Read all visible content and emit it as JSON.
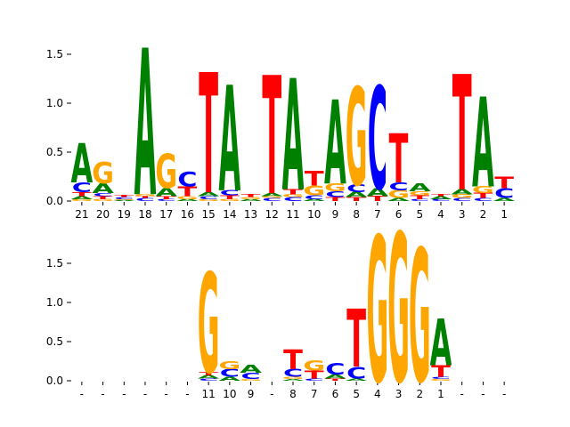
{
  "colors": {
    "A": "#008000",
    "C": "#0000ff",
    "G": "#ffa500",
    "T": "#ff0000"
  },
  "chart_data": [
    {
      "type": "sequence-logo",
      "title": "",
      "xlabel": "",
      "ylabel": "",
      "ylim": [
        0,
        1.6
      ],
      "yticks": [
        0.0,
        0.5,
        1.0,
        1.5
      ],
      "grid": false,
      "positions": [
        {
          "label": "21",
          "stack": [
            [
              "G",
              0.02
            ],
            [
              "A",
              0.03
            ],
            [
              "T",
              0.04
            ],
            [
              "C",
              0.1
            ],
            [
              "A",
              0.4
            ]
          ]
        },
        {
          "label": "20",
          "stack": [
            [
              "G",
              0.02
            ],
            [
              "T",
              0.03
            ],
            [
              "C",
              0.03
            ],
            [
              "A",
              0.1
            ],
            [
              "G",
              0.22
            ]
          ]
        },
        {
          "label": "19",
          "stack": [
            [
              "A",
              0.01
            ],
            [
              "G",
              0.01
            ],
            [
              "C",
              0.02
            ],
            [
              "T",
              0.02
            ]
          ]
        },
        {
          "label": "18",
          "stack": [
            [
              "C",
              0.03
            ],
            [
              "T",
              0.02
            ],
            [
              "G",
              0.02
            ],
            [
              "A",
              1.5
            ]
          ]
        },
        {
          "label": "17",
          "stack": [
            [
              "C",
              0.02
            ],
            [
              "T",
              0.03
            ],
            [
              "A",
              0.08
            ],
            [
              "G",
              0.35
            ]
          ]
        },
        {
          "label": "16",
          "stack": [
            [
              "A",
              0.02
            ],
            [
              "G",
              0.03
            ],
            [
              "T",
              0.1
            ],
            [
              "C",
              0.15
            ]
          ]
        },
        {
          "label": "15",
          "stack": [
            [
              "G",
              0.02
            ],
            [
              "C",
              0.03
            ],
            [
              "A",
              0.04
            ],
            [
              "T",
              1.23
            ]
          ]
        },
        {
          "label": "14",
          "stack": [
            [
              "G",
              0.02
            ],
            [
              "T",
              0.04
            ],
            [
              "C",
              0.05
            ],
            [
              "A",
              1.08
            ]
          ]
        },
        {
          "label": "13",
          "stack": [
            [
              "A",
              0.02
            ],
            [
              "G",
              0.02
            ],
            [
              "T",
              0.03
            ]
          ]
        },
        {
          "label": "12",
          "stack": [
            [
              "C",
              0.03
            ],
            [
              "G",
              0.02
            ],
            [
              "A",
              0.03
            ],
            [
              "T",
              1.21
            ]
          ]
        },
        {
          "label": "11",
          "stack": [
            [
              "C",
              0.04
            ],
            [
              "G",
              0.03
            ],
            [
              "T",
              0.05
            ],
            [
              "A",
              1.14
            ]
          ]
        },
        {
          "label": "10",
          "stack": [
            [
              "A",
              0.02
            ],
            [
              "C",
              0.04
            ],
            [
              "G",
              0.1
            ],
            [
              "T",
              0.15
            ]
          ]
        },
        {
          "label": "9",
          "stack": [
            [
              "T",
              0.04
            ],
            [
              "C",
              0.06
            ],
            [
              "G",
              0.08
            ],
            [
              "A",
              0.86
            ]
          ]
        },
        {
          "label": "8",
          "stack": [
            [
              "T",
              0.04
            ],
            [
              "A",
              0.05
            ],
            [
              "C",
              0.08
            ],
            [
              "G",
              1.0
            ]
          ]
        },
        {
          "label": "7",
          "stack": [
            [
              "T",
              0.05
            ],
            [
              "A",
              0.08
            ],
            [
              "C",
              1.05
            ]
          ]
        },
        {
          "label": "6",
          "stack": [
            [
              "A",
              0.03
            ],
            [
              "G",
              0.08
            ],
            [
              "C",
              0.08
            ],
            [
              "T",
              0.5
            ]
          ]
        },
        {
          "label": "5",
          "stack": [
            [
              "C",
              0.02
            ],
            [
              "T",
              0.04
            ],
            [
              "G",
              0.04
            ],
            [
              "A",
              0.08
            ]
          ]
        },
        {
          "label": "4",
          "stack": [
            [
              "C",
              0.02
            ],
            [
              "A",
              0.03
            ],
            [
              "T",
              0.02
            ]
          ]
        },
        {
          "label": "3",
          "stack": [
            [
              "C",
              0.03
            ],
            [
              "G",
              0.04
            ],
            [
              "A",
              0.05
            ],
            [
              "T",
              1.18
            ]
          ]
        },
        {
          "label": "2",
          "stack": [
            [
              "C",
              0.03
            ],
            [
              "T",
              0.05
            ],
            [
              "G",
              0.07
            ],
            [
              "A",
              0.92
            ]
          ]
        },
        {
          "label": "1",
          "stack": [
            [
              "A",
              0.03
            ],
            [
              "C",
              0.1
            ],
            [
              "T",
              0.12
            ]
          ]
        }
      ]
    },
    {
      "type": "sequence-logo",
      "title": "",
      "xlabel": "",
      "ylabel": "",
      "ylim": [
        0,
        1.9
      ],
      "yticks": [
        0.0,
        0.5,
        1.0,
        1.5
      ],
      "grid": false,
      "positions": [
        {
          "label": "-",
          "stack": []
        },
        {
          "label": "-",
          "stack": []
        },
        {
          "label": "-",
          "stack": []
        },
        {
          "label": "-",
          "stack": []
        },
        {
          "label": "-",
          "stack": []
        },
        {
          "label": "-",
          "stack": []
        },
        {
          "label": "11",
          "stack": [
            [
              "C",
              0.03
            ],
            [
              "A",
              0.04
            ],
            [
              "T",
              0.04
            ],
            [
              "G",
              1.28
            ]
          ]
        },
        {
          "label": "10",
          "stack": [
            [
              "A",
              0.05
            ],
            [
              "C",
              0.1
            ],
            [
              "G",
              0.1
            ]
          ]
        },
        {
          "label": "9",
          "stack": [
            [
              "G",
              0.02
            ],
            [
              "C",
              0.08
            ],
            [
              "A",
              0.1
            ]
          ]
        },
        {
          "label": "-",
          "stack": []
        },
        {
          "label": "8",
          "stack": [
            [
              "A",
              0.02
            ],
            [
              "G",
              0.03
            ],
            [
              "C",
              0.1
            ],
            [
              "T",
              0.25
            ]
          ]
        },
        {
          "label": "7",
          "stack": [
            [
              "C",
              0.03
            ],
            [
              "T",
              0.1
            ],
            [
              "G",
              0.13
            ]
          ]
        },
        {
          "label": "6",
          "stack": [
            [
              "T",
              0.03
            ],
            [
              "A",
              0.05
            ],
            [
              "C",
              0.15
            ]
          ]
        },
        {
          "label": "5",
          "stack": [
            [
              "A",
              0.03
            ],
            [
              "C",
              0.15
            ],
            [
              "T",
              0.74
            ]
          ]
        },
        {
          "label": "4",
          "stack": [
            [
              "G",
              1.86
            ]
          ]
        },
        {
          "label": "3",
          "stack": [
            [
              "G",
              1.9
            ]
          ]
        },
        {
          "label": "2",
          "stack": [
            [
              "G",
              1.7
            ]
          ]
        },
        {
          "label": "1",
          "stack": [
            [
              "G",
              0.02
            ],
            [
              "C",
              0.03
            ],
            [
              "T",
              0.15
            ],
            [
              "A",
              0.6
            ]
          ]
        },
        {
          "label": "-",
          "stack": []
        },
        {
          "label": "-",
          "stack": []
        },
        {
          "label": "-",
          "stack": []
        }
      ]
    }
  ]
}
